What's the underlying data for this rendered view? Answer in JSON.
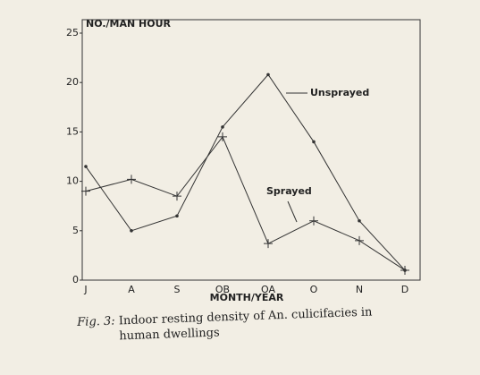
{
  "chart_data": {
    "type": "line",
    "y_label": "NO./MAN HOUR",
    "x_label": "MONTH/YEAR",
    "categories": [
      "J",
      "A",
      "S",
      "OB",
      "OA",
      "O",
      "N",
      "D"
    ],
    "series": [
      {
        "name": "Unsprayed",
        "color": "#333333",
        "marker": "dot",
        "values": [
          11.5,
          5,
          6.5,
          15.5,
          20.8,
          14,
          6,
          1
        ]
      },
      {
        "name": "Sprayed",
        "color": "#333333",
        "marker": "cross",
        "values": [
          9,
          10.2,
          8.5,
          14.5,
          3.7,
          6,
          4,
          1
        ]
      }
    ],
    "ylim": [
      0,
      25
    ],
    "yticks": [
      0,
      5,
      10,
      15,
      20,
      25
    ]
  },
  "caption": {
    "label": "Fig. 3:",
    "text": "Indoor resting density of An. culicifacies in human dwellings"
  }
}
